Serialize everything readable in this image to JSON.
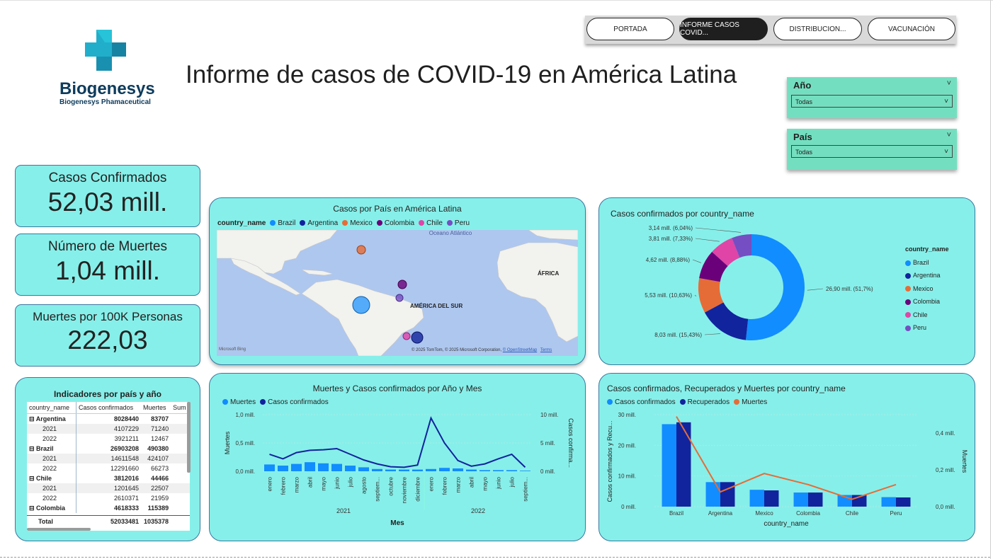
{
  "nav": {
    "buttons": [
      "PORTADA",
      "INFORME CASOS COVID...",
      "DISTRIBUCION...",
      "VACUNACIÓN"
    ],
    "active_index": 1
  },
  "logo": {
    "name": "Biogenesys",
    "subtitle": "Biogenesys Phamaceutical"
  },
  "page_title": "Informe de casos de COVID-19 en América Latina",
  "slicers": {
    "year": {
      "label": "Año",
      "value": "Todas"
    },
    "country": {
      "label": "País",
      "value": "Todas"
    }
  },
  "kpis": {
    "confirmed": {
      "label": "Casos Confirmados",
      "value": "52,03 mill."
    },
    "deaths": {
      "label": "Número de Muertes",
      "value": "1,04 mill."
    },
    "deaths_per_100k": {
      "label": "Muertes por 100K Personas",
      "value": "222,03"
    }
  },
  "colors": {
    "brazil": "#118dff",
    "argentina": "#12239e",
    "mexico": "#e66c37",
    "colombia": "#6b007b",
    "chile": "#e044a7",
    "peru": "#744ec2",
    "panel_bg": "#87efe9",
    "slicer_bg": "#74dfc0"
  },
  "map": {
    "title": "Casos por País en América Latina",
    "legend_title": "country_name",
    "legend": [
      "Brazil",
      "Argentina",
      "Mexico",
      "Colombia",
      "Chile",
      "Peru"
    ],
    "ocean_label": "Oceano Atlántico",
    "continent_sa": "AMÉRICA DEL SUR",
    "continent_af": "ÁFRICA",
    "bing": "Microsoft Bing",
    "attribution": "© 2025 TomTom, © 2025 Microsoft Corporation,",
    "osm": "© OpenStreetMap",
    "terms": "Terms"
  },
  "table": {
    "title": "Indicadores por país y año",
    "headers": [
      "country_name",
      "Casos confirmados",
      "Muertes",
      "Sum"
    ],
    "rows": [
      {
        "label": "Argentina",
        "c": "8028440",
        "m": "83707",
        "group": true
      },
      {
        "label": "2021",
        "c": "4107229",
        "m": "71240",
        "group": false
      },
      {
        "label": "2022",
        "c": "3921211",
        "m": "12467",
        "group": false
      },
      {
        "label": "Brazil",
        "c": "26903208",
        "m": "490380",
        "group": true
      },
      {
        "label": "2021",
        "c": "14611548",
        "m": "424107",
        "group": false
      },
      {
        "label": "2022",
        "c": "12291660",
        "m": "66273",
        "group": false
      },
      {
        "label": "Chile",
        "c": "3812016",
        "m": "44466",
        "group": true
      },
      {
        "label": "2021",
        "c": "1201645",
        "m": "22507",
        "group": false
      },
      {
        "label": "2022",
        "c": "2610371",
        "m": "21959",
        "group": false
      },
      {
        "label": "Colombia",
        "c": "4618333",
        "m": "115389",
        "group": true
      }
    ],
    "total": {
      "label": "Total",
      "c": "52033481",
      "m": "1035378"
    }
  },
  "chart_data": [
    {
      "type": "pie",
      "title": "Casos confirmados por country_name",
      "legend_title": "country_name",
      "categories": [
        "Brazil",
        "Argentina",
        "Mexico",
        "Colombia",
        "Chile",
        "Peru"
      ],
      "values": [
        26.9,
        8.03,
        5.53,
        4.62,
        3.81,
        3.14
      ],
      "data_labels": [
        "26,90 mill. (51,7%)",
        "8,03 mill. (15,43%)",
        "5,53 mill. (10,63%)",
        "4,62 mill. (8,88%)",
        "3,81 mill. (7,33%)",
        "3,14 mill. (6,04%)"
      ],
      "legend": "right"
    },
    {
      "type": "bar",
      "title": "Muertes y Casos confirmados por Año y Mes",
      "series_legend": [
        "Muertes",
        "Casos confirmados"
      ],
      "categories": [
        "enero",
        "febrero",
        "marzo",
        "abril",
        "mayo",
        "junio",
        "julio",
        "agosto",
        "septiem...",
        "octubre",
        "noviembre",
        "diciembre",
        "enero",
        "febrero",
        "marzo",
        "abril",
        "mayo",
        "junio",
        "julio",
        "septiem..."
      ],
      "years": [
        {
          "label": "2021",
          "count": 12
        },
        {
          "label": "2022",
          "count": 8
        }
      ],
      "series": [
        {
          "name": "Muertes",
          "values": [
            0.12,
            0.1,
            0.13,
            0.16,
            0.14,
            0.13,
            0.1,
            0.07,
            0.04,
            0.03,
            0.03,
            0.03,
            0.04,
            0.06,
            0.05,
            0.03,
            0.02,
            0.02,
            0.02,
            0.01
          ]
        },
        {
          "name": "Casos confirmados",
          "values": [
            3.0,
            2.2,
            3.3,
            3.7,
            3.8,
            4.0,
            3.0,
            2.0,
            1.3,
            0.8,
            0.7,
            1.1,
            9.4,
            5.0,
            1.9,
            0.9,
            1.3,
            2.2,
            3.0,
            0.7
          ]
        }
      ],
      "xlabel": "Mes",
      "ylabel": "Muertes",
      "ylabel2": "Casos confirma...",
      "y_ticks": [
        "0,0 mill.",
        "0,5 mill.",
        "1,0 mill."
      ],
      "y2_ticks": [
        "0 mill.",
        "5 mill.",
        "10 mill."
      ],
      "ylim": [
        0,
        1.0
      ],
      "y2lim": [
        0,
        10
      ]
    },
    {
      "type": "bar",
      "title": "Casos confirmados, Recuperados y Muertes por country_name",
      "series_legend": [
        "Casos confirmados",
        "Recuperados",
        "Muertes"
      ],
      "categories": [
        "Brazil",
        "Argentina",
        "Mexico",
        "Colombia",
        "Chile",
        "Peru"
      ],
      "series": [
        {
          "name": "Casos confirmados",
          "values": [
            26.9,
            8.0,
            5.5,
            4.6,
            3.8,
            3.1
          ]
        },
        {
          "name": "Recuperados",
          "values": [
            27.5,
            8.0,
            5.3,
            4.6,
            3.8,
            3.0
          ]
        },
        {
          "name": "Muertes",
          "values": [
            0.49,
            0.08,
            0.18,
            0.12,
            0.04,
            0.12
          ]
        }
      ],
      "xlabel": "country_name",
      "ylabel": "Casos confirmados y Recu...",
      "ylabel2": "Muertes",
      "y_ticks": [
        "0 mill.",
        "10 mill.",
        "20 mill.",
        "30 mill."
      ],
      "y2_ticks": [
        "0,0 mill.",
        "0,2 mill.",
        "0,4 mill."
      ],
      "ylim": [
        0,
        30
      ],
      "y2lim": [
        0,
        0.5
      ]
    }
  ]
}
